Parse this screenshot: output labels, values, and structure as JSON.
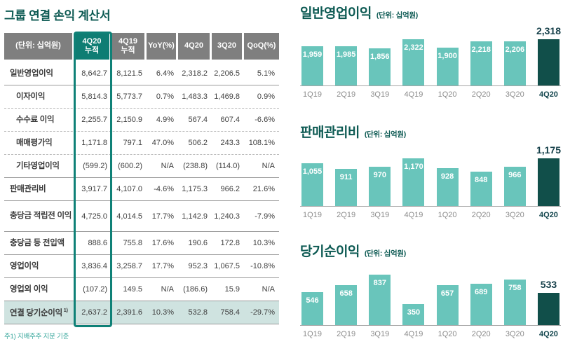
{
  "colors": {
    "title_teal": "#0d5a53",
    "header_gray": "#7f7f7f",
    "header_highlight_teal": "#0e7d73",
    "column_box_teal": "#0f8177",
    "bar_light_teal": "#69c5bb",
    "bar_dark_teal": "#114f4a",
    "highlight_row_bg": "#cfe3e0",
    "footnote_teal": "#38a79c",
    "body_text": "#3f3f3f"
  },
  "income_statement": {
    "title": "그룹 연결 손익 계산서",
    "unit_header": "(단위: 십억원)",
    "col_headers": [
      {
        "line1": "4Q20",
        "line2": "누적",
        "highlight": true
      },
      {
        "line1": "4Q19",
        "line2": "누적",
        "highlight": false
      },
      {
        "line1": "YoY(%)",
        "line2": "",
        "highlight": false
      },
      {
        "line1": "4Q20",
        "line2": "",
        "highlight": false
      },
      {
        "line1": "3Q20",
        "line2": "",
        "highlight": false
      },
      {
        "line1": "QoQ(%)",
        "line2": "",
        "highlight": false
      }
    ],
    "rows": [
      {
        "label": "일반영업이익",
        "indent": false,
        "sep": "solid",
        "highlight": false,
        "sup": "",
        "tall": false,
        "values": [
          "8,642.7",
          "8,121.5",
          "6.4%",
          "2,318.2",
          "2,206.5",
          "5.1%"
        ]
      },
      {
        "label": "이자이익",
        "indent": true,
        "sep": "dashed",
        "highlight": false,
        "sup": "",
        "tall": false,
        "values": [
          "5,814.3",
          "5,773.7",
          "0.7%",
          "1,483.3",
          "1,469.8",
          "0.9%"
        ]
      },
      {
        "label": "수수료 이익",
        "indent": true,
        "sep": "dashed",
        "highlight": false,
        "sup": "",
        "tall": false,
        "values": [
          "2,255.7",
          "2,150.9",
          "4.9%",
          "567.4",
          "607.4",
          "-6.6%"
        ]
      },
      {
        "label": "매매평가익",
        "indent": true,
        "sep": "dashed",
        "highlight": false,
        "sup": "",
        "tall": false,
        "values": [
          "1,171.8",
          "797.1",
          "47.0%",
          "506.2",
          "243.3",
          "108.1%"
        ]
      },
      {
        "label": "기타영업이익",
        "indent": true,
        "sep": "solid",
        "highlight": false,
        "sup": "",
        "tall": false,
        "values": [
          "(599.2)",
          "(600.2)",
          "N/A",
          "(238.8)",
          "(114.0)",
          "N/A"
        ]
      },
      {
        "label": "판매관리비",
        "indent": false,
        "sep": "solid",
        "highlight": false,
        "sup": "",
        "tall": false,
        "values": [
          "3,917.7",
          "4,107.0",
          "-4.6%",
          "1,175.3",
          "966.2",
          "21.6%"
        ]
      },
      {
        "label": "충당금 적립전 이익",
        "indent": false,
        "sep": "solid",
        "highlight": false,
        "sup": "",
        "tall": true,
        "values": [
          "4,725.0",
          "4,014.5",
          "17.7%",
          "1,142.9",
          "1,240.3",
          "-7.9%"
        ]
      },
      {
        "label": "충당금 등 전입액",
        "indent": false,
        "sep": "solid",
        "highlight": false,
        "sup": "",
        "tall": false,
        "values": [
          "888.6",
          "755.8",
          "17.6%",
          "190.6",
          "172.8",
          "10.3%"
        ]
      },
      {
        "label": "영업이익",
        "indent": false,
        "sep": "solid",
        "highlight": false,
        "sup": "",
        "tall": false,
        "values": [
          "3,836.4",
          "3,258.7",
          "17.7%",
          "952.3",
          "1,067.5",
          "-10.8%"
        ]
      },
      {
        "label": "영업외 이익",
        "indent": false,
        "sep": "solid",
        "highlight": false,
        "sup": "",
        "tall": false,
        "values": [
          "(107.2)",
          "149.5",
          "N/A",
          "(186.6)",
          "15.9",
          "N/A"
        ]
      },
      {
        "label": "연결 당기순이익",
        "indent": false,
        "sep": "solid",
        "highlight": true,
        "sup": "1)",
        "tall": false,
        "values": [
          "2,637.2",
          "2,391.6",
          "10.3%",
          "532.8",
          "758.4",
          "-29.7%"
        ]
      }
    ],
    "footnote": "주1) 지배주주 지분 기준"
  },
  "chart_data": [
    {
      "type": "bar",
      "title": "일반영업이익",
      "unit_label": "(단위: 십억원)",
      "categories": [
        "1Q19",
        "2Q19",
        "3Q19",
        "4Q19",
        "1Q20",
        "2Q20",
        "3Q20",
        "4Q20"
      ],
      "values": [
        1959,
        1985,
        1856,
        2322,
        1900,
        2218,
        2206,
        2318
      ],
      "highlight_category": "4Q20",
      "ylim": [
        0,
        2400
      ],
      "grid": false,
      "legend": "none"
    },
    {
      "type": "bar",
      "title": "판매관리비",
      "unit_label": "(단위: 십억원)",
      "categories": [
        "1Q19",
        "2Q19",
        "3Q19",
        "4Q19",
        "1Q20",
        "2Q20",
        "3Q20",
        "4Q20"
      ],
      "values": [
        1055,
        911,
        970,
        1170,
        928,
        848,
        966,
        1175
      ],
      "highlight_category": "4Q20",
      "ylim": [
        0,
        1250
      ],
      "grid": false,
      "legend": "none"
    },
    {
      "type": "bar",
      "title": "당기순이익",
      "unit_label": "(단위: 십억원)",
      "categories": [
        "1Q19",
        "2Q19",
        "3Q19",
        "4Q19",
        "1Q20",
        "2Q20",
        "3Q20",
        "4Q20"
      ],
      "values": [
        546,
        658,
        837,
        350,
        657,
        689,
        758,
        533
      ],
      "highlight_category": "4Q20",
      "ylim": [
        0,
        900
      ],
      "grid": false,
      "legend": "none"
    }
  ]
}
